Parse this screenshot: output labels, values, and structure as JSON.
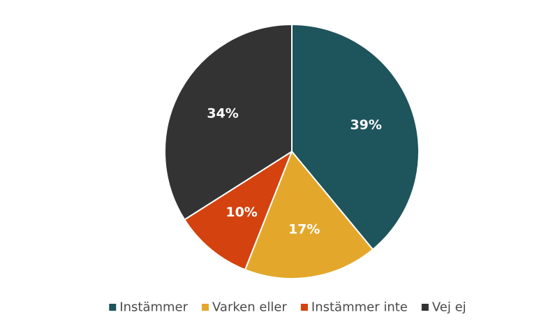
{
  "chart_data": {
    "type": "pie",
    "categories": [
      "Instämmer",
      "Varken eller",
      "Instämmer inte",
      "Vej ej"
    ],
    "values": [
      39,
      17,
      10,
      34
    ],
    "value_labels": [
      "39%",
      "17%",
      "10%",
      "34%"
    ],
    "colors": [
      "#1e545c",
      "#e3a82b",
      "#d4420f",
      "#333333"
    ],
    "start_angle_deg": 0,
    "direction": "clockwise",
    "legend_position": "bottom",
    "title": ""
  }
}
